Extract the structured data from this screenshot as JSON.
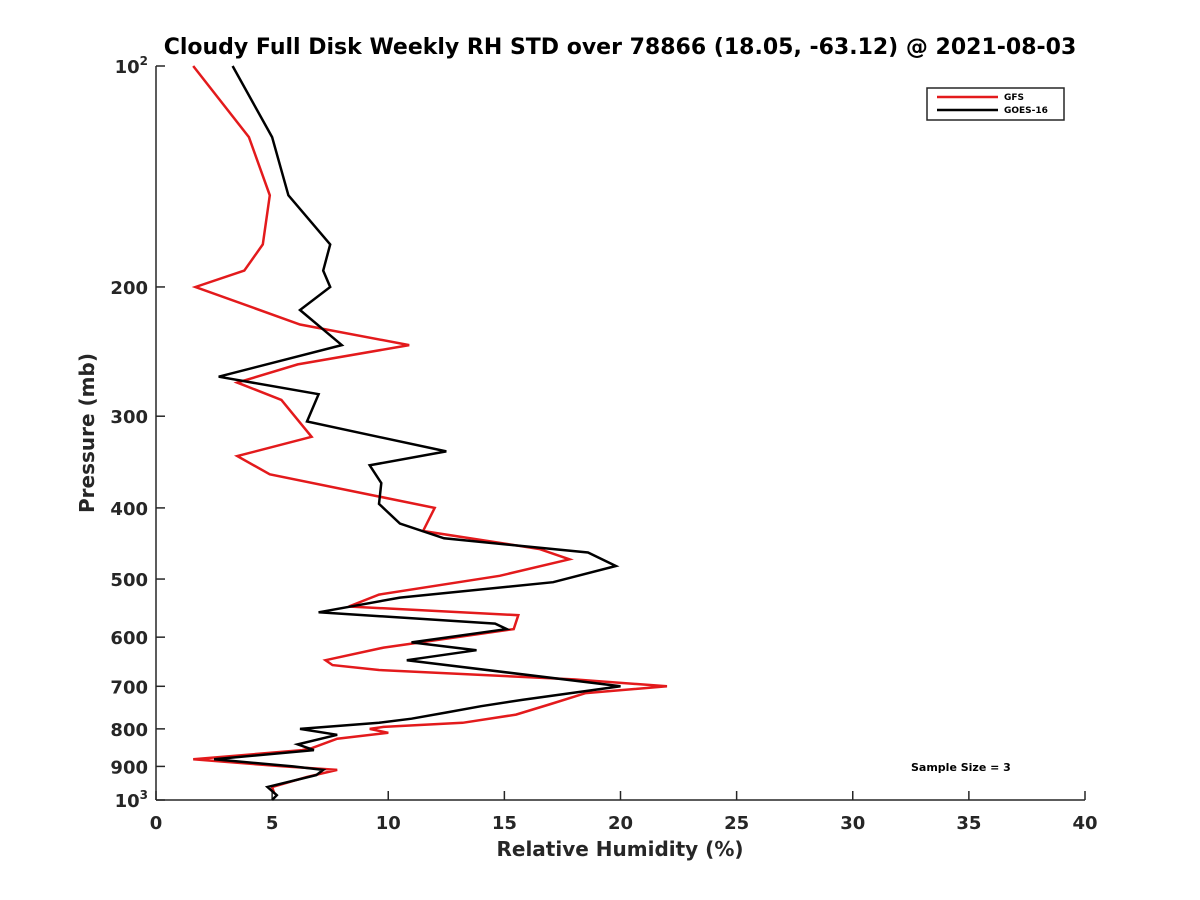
{
  "chart_data": {
    "type": "line",
    "title": "Cloudy Full Disk Weekly RH STD over 78866 (18.05, -63.12) @ 2021-08-03",
    "xlabel": "Relative Humidity (%)",
    "ylabel": "Pressure (mb)",
    "xlim": [
      0,
      40
    ],
    "ylim": [
      100,
      1000
    ],
    "yscale": "log",
    "y_reversed": true,
    "xticks": [
      0,
      5,
      10,
      15,
      20,
      25,
      30,
      35,
      40
    ],
    "xtick_labels": [
      "0",
      "5",
      "10",
      "15",
      "20",
      "25",
      "30",
      "35",
      "40"
    ],
    "yticks": [
      {
        "value": 100,
        "base": "10",
        "exp": "2"
      },
      {
        "value": 200,
        "label": "200"
      },
      {
        "value": 300,
        "label": "300"
      },
      {
        "value": 400,
        "label": "400"
      },
      {
        "value": 500,
        "label": "500"
      },
      {
        "value": 600,
        "label": "600"
      },
      {
        "value": 700,
        "label": "700"
      },
      {
        "value": 800,
        "label": "800"
      },
      {
        "value": 900,
        "label": "900"
      },
      {
        "value": 1000,
        "base": "10",
        "exp": "3"
      }
    ],
    "legend_position": "top-right",
    "annotation": "Sample Size = 3",
    "series": [
      {
        "name": "GFS",
        "color": "#e31a1c",
        "points": [
          [
            1.6,
            100
          ],
          [
            4.0,
            125
          ],
          [
            4.9,
            150
          ],
          [
            4.6,
            175
          ],
          [
            3.8,
            190
          ],
          [
            1.7,
            200
          ],
          [
            6.2,
            225
          ],
          [
            10.9,
            240
          ],
          [
            6.1,
            255
          ],
          [
            3.5,
            270
          ],
          [
            5.4,
            285
          ],
          [
            6.7,
            320
          ],
          [
            3.5,
            340
          ],
          [
            4.9,
            360
          ],
          [
            12.0,
            400
          ],
          [
            11.5,
            430
          ],
          [
            16.5,
            455
          ],
          [
            17.8,
            470
          ],
          [
            14.8,
            495
          ],
          [
            9.6,
            525
          ],
          [
            8.3,
            545
          ],
          [
            15.6,
            560
          ],
          [
            15.4,
            585
          ],
          [
            9.8,
            620
          ],
          [
            7.3,
            645
          ],
          [
            7.6,
            655
          ],
          [
            9.6,
            665
          ],
          [
            18.0,
            685
          ],
          [
            22.0,
            700
          ],
          [
            18.5,
            715
          ],
          [
            17.0,
            740
          ],
          [
            15.5,
            765
          ],
          [
            13.2,
            785
          ],
          [
            9.8,
            795
          ],
          [
            9.2,
            800
          ],
          [
            10.0,
            810
          ],
          [
            7.8,
            825
          ],
          [
            6.7,
            850
          ],
          [
            6.3,
            855
          ],
          [
            1.6,
            880
          ],
          [
            5.5,
            900
          ],
          [
            7.8,
            910
          ],
          [
            6.5,
            930
          ],
          [
            5.0,
            960
          ],
          [
            5.1,
            980
          ]
        ]
      },
      {
        "name": "GOES-16",
        "color": "#000000",
        "points": [
          [
            3.3,
            100
          ],
          [
            5.0,
            125
          ],
          [
            5.7,
            150
          ],
          [
            7.5,
            175
          ],
          [
            7.2,
            190
          ],
          [
            7.5,
            200
          ],
          [
            6.2,
            215
          ],
          [
            8.0,
            240
          ],
          [
            2.7,
            265
          ],
          [
            7.0,
            280
          ],
          [
            6.5,
            305
          ],
          [
            12.5,
            335
          ],
          [
            9.2,
            350
          ],
          [
            9.7,
            370
          ],
          [
            9.6,
            395
          ],
          [
            10.5,
            420
          ],
          [
            12.4,
            440
          ],
          [
            18.6,
            460
          ],
          [
            19.8,
            480
          ],
          [
            17.1,
            505
          ],
          [
            10.5,
            530
          ],
          [
            7.0,
            555
          ],
          [
            14.6,
            575
          ],
          [
            15.1,
            585
          ],
          [
            11.0,
            610
          ],
          [
            13.8,
            625
          ],
          [
            10.8,
            645
          ],
          [
            20.0,
            700
          ],
          [
            15.8,
            730
          ],
          [
            14.0,
            745
          ],
          [
            12.5,
            760
          ],
          [
            11.0,
            775
          ],
          [
            9.6,
            785
          ],
          [
            6.2,
            800
          ],
          [
            7.8,
            815
          ],
          [
            6.1,
            840
          ],
          [
            6.8,
            855
          ],
          [
            2.5,
            880
          ],
          [
            5.9,
            900
          ],
          [
            7.2,
            910
          ],
          [
            6.9,
            925
          ],
          [
            4.8,
            960
          ],
          [
            5.2,
            985
          ],
          [
            5.0,
            1000
          ]
        ]
      }
    ]
  }
}
